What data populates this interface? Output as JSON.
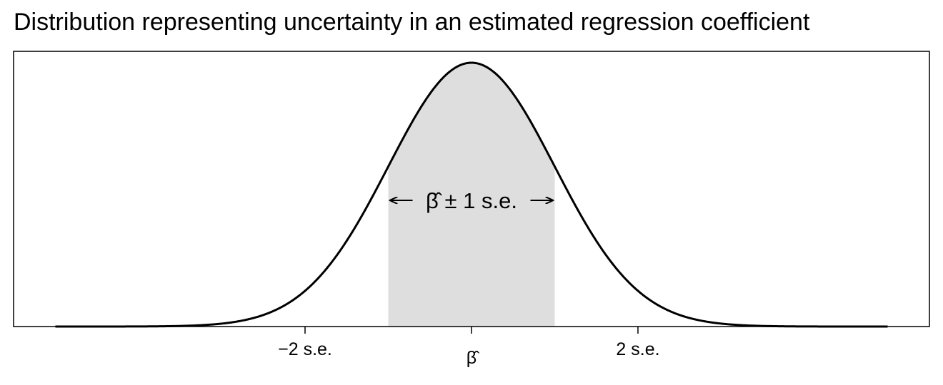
{
  "chart_data": {
    "type": "area",
    "title": "Distribution representing uncertainty in an estimated regression coefficient",
    "xlabel": "",
    "ylabel": "",
    "xlim": [
      -5,
      5
    ],
    "x_ticks": [
      {
        "value": -2,
        "label": "−2 s.e."
      },
      {
        "value": 0,
        "label": "β̂"
      },
      {
        "value": 2,
        "label": "2 s.e."
      }
    ],
    "curve": {
      "distribution": "normal",
      "mean": 0,
      "sd": 1,
      "x_range": [
        -5,
        5
      ]
    },
    "shaded_interval": [
      -1,
      1
    ],
    "shaded_color": "#dedede",
    "curve_color": "#000000",
    "annotation": {
      "text": "β̂ ± 1 s.e.",
      "x": 0,
      "y_fraction_of_peak": 0.48
    },
    "grid": false,
    "legend": "none"
  }
}
